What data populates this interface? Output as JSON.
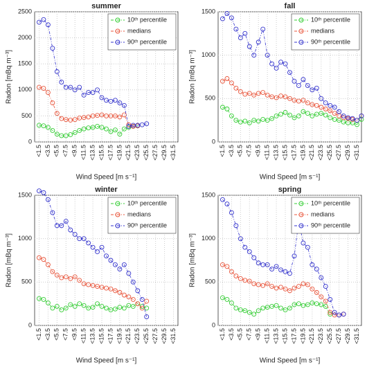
{
  "chart_data": [
    {
      "type": "line",
      "title": "summer",
      "xlabel": "Wind Speed [m s⁻¹]",
      "ylabel": "Radon [mBq m⁻³]",
      "grid": true,
      "legend": "upper right",
      "xlim": [
        0.5,
        32.5
      ],
      "ylim": [
        0,
        2500
      ],
      "yticks": [
        0,
        500,
        1000,
        1500,
        2000,
        2500
      ],
      "xticks": [
        {
          "value": 1.5,
          "label": "<1.5"
        },
        {
          "value": 3.5,
          "label": "<3.5"
        },
        {
          "value": 5.5,
          "label": "<5.5"
        },
        {
          "value": 7.5,
          "label": "<7.5"
        },
        {
          "value": 9.5,
          "label": "<9.5"
        },
        {
          "value": 11.5,
          "label": "<11.5"
        },
        {
          "value": 13.5,
          "label": "<13.5"
        },
        {
          "value": 15.5,
          "label": "<15.5"
        },
        {
          "value": 17.5,
          "label": "<17.5"
        },
        {
          "value": 19.5,
          "label": "<19.5"
        },
        {
          "value": 21.5,
          "label": "<21.5"
        },
        {
          "value": 23.5,
          "label": "<23.5"
        },
        {
          "value": 25.5,
          "label": "<25.5"
        },
        {
          "value": 27.5,
          "label": "<27.5"
        },
        {
          "value": 29.5,
          "label": "<29.5"
        },
        {
          "value": 31.5,
          "label": "<31.5"
        }
      ],
      "series": [
        {
          "name": "10ᵗʰ percentile",
          "color": "#33cc33",
          "x": [
            1.5,
            2.5,
            3.5,
            4.5,
            5.5,
            6.5,
            7.5,
            8.5,
            9.5,
            10.5,
            11.5,
            12.5,
            13.5,
            14.5,
            15.5,
            16.5,
            17.5,
            18.5,
            19.5,
            20.5,
            21.5,
            22.5,
            23.5
          ],
          "values": [
            320,
            310,
            280,
            220,
            150,
            120,
            120,
            140,
            180,
            220,
            250,
            270,
            280,
            300,
            280,
            250,
            200,
            230,
            150,
            250,
            280,
            300,
            310
          ]
        },
        {
          "name": "medians",
          "color": "#e8553b",
          "x": [
            1.5,
            2.5,
            3.5,
            4.5,
            5.5,
            6.5,
            7.5,
            8.5,
            9.5,
            10.5,
            11.5,
            12.5,
            13.5,
            14.5,
            15.5,
            16.5,
            17.5,
            18.5,
            19.5,
            20.5,
            21.5,
            22.5,
            23.5
          ],
          "values": [
            1050,
            1030,
            950,
            750,
            550,
            450,
            430,
            420,
            430,
            460,
            470,
            480,
            500,
            510,
            520,
            500,
            500,
            500,
            480,
            520,
            330,
            300,
            310
          ]
        },
        {
          "name": "90ᵗʰ percentile",
          "color": "#3333cc",
          "x": [
            1.5,
            2.5,
            3.5,
            4.5,
            5.5,
            6.5,
            7.5,
            8.5,
            9.5,
            10.5,
            11.5,
            12.5,
            13.5,
            14.5,
            15.5,
            16.5,
            17.5,
            18.5,
            19.5,
            20.5,
            21.5,
            22.5,
            23.5,
            24.5,
            25.5
          ],
          "values": [
            2300,
            2350,
            2250,
            1800,
            1350,
            1150,
            1050,
            1050,
            1000,
            1050,
            900,
            950,
            950,
            1000,
            850,
            800,
            780,
            800,
            750,
            700,
            300,
            320,
            320,
            330,
            350
          ]
        }
      ]
    },
    {
      "type": "line",
      "title": "fall",
      "xlabel": "Wind Speed [m s⁻¹]",
      "ylabel": "Radon [mBq m⁻³]",
      "grid": true,
      "legend": "upper right",
      "xlim": [
        0.5,
        32.5
      ],
      "ylim": [
        0,
        1500
      ],
      "yticks": [
        0,
        500,
        1000,
        1500
      ],
      "xticks": [
        {
          "value": 1.5,
          "label": "<1.5"
        },
        {
          "value": 3.5,
          "label": "<3.5"
        },
        {
          "value": 5.5,
          "label": "<5.5"
        },
        {
          "value": 7.5,
          "label": "<7.5"
        },
        {
          "value": 9.5,
          "label": "<9.5"
        },
        {
          "value": 11.5,
          "label": "<11.5"
        },
        {
          "value": 13.5,
          "label": "<13.5"
        },
        {
          "value": 15.5,
          "label": "<15.5"
        },
        {
          "value": 17.5,
          "label": "<17.5"
        },
        {
          "value": 19.5,
          "label": "<19.5"
        },
        {
          "value": 21.5,
          "label": "<21.5"
        },
        {
          "value": 23.5,
          "label": "<23.5"
        },
        {
          "value": 25.5,
          "label": "<25.5"
        },
        {
          "value": 27.5,
          "label": "<27.5"
        },
        {
          "value": 29.5,
          "label": "<29.5"
        },
        {
          "value": 31.5,
          "label": "<31.5"
        }
      ],
      "series": [
        {
          "name": "10ᵗʰ percentile",
          "color": "#33cc33",
          "x": [
            1.5,
            2.5,
            3.5,
            4.5,
            5.5,
            6.5,
            7.5,
            8.5,
            9.5,
            10.5,
            11.5,
            12.5,
            13.5,
            14.5,
            15.5,
            16.5,
            17.5,
            18.5,
            19.5,
            20.5,
            21.5,
            22.5,
            23.5,
            24.5,
            25.5,
            26.5,
            27.5,
            28.5,
            29.5,
            30.5,
            31.5,
            32.5
          ],
          "values": [
            400,
            380,
            300,
            250,
            230,
            240,
            220,
            250,
            240,
            260,
            250,
            270,
            300,
            320,
            340,
            310,
            280,
            300,
            350,
            330,
            300,
            320,
            330,
            310,
            280,
            260,
            250,
            230,
            220,
            220,
            200,
            260
          ]
        },
        {
          "name": "medians",
          "color": "#e8553b",
          "x": [
            1.5,
            2.5,
            3.5,
            4.5,
            5.5,
            6.5,
            7.5,
            8.5,
            9.5,
            10.5,
            11.5,
            12.5,
            13.5,
            14.5,
            15.5,
            16.5,
            17.5,
            18.5,
            19.5,
            20.5,
            21.5,
            22.5,
            23.5,
            24.5,
            25.5,
            26.5,
            27.5,
            28.5,
            29.5,
            30.5,
            31.5,
            32.5
          ],
          "values": [
            700,
            730,
            680,
            620,
            580,
            550,
            560,
            540,
            560,
            570,
            540,
            520,
            510,
            530,
            520,
            500,
            480,
            470,
            480,
            450,
            430,
            420,
            400,
            380,
            360,
            330,
            300,
            280,
            270,
            260,
            250,
            300
          ]
        },
        {
          "name": "90ᵗʰ percentile",
          "color": "#3333cc",
          "x": [
            1.5,
            2.5,
            3.5,
            4.5,
            5.5,
            6.5,
            7.5,
            8.5,
            9.5,
            10.5,
            11.5,
            12.5,
            13.5,
            14.5,
            15.5,
            16.5,
            17.5,
            18.5,
            19.5,
            20.5,
            21.5,
            22.5,
            23.5,
            24.5,
            25.5,
            26.5,
            27.5,
            28.5,
            29.5,
            30.5,
            31.5,
            32.5
          ],
          "values": [
            1420,
            1480,
            1430,
            1300,
            1200,
            1250,
            1100,
            1000,
            1150,
            1300,
            1000,
            900,
            850,
            920,
            900,
            800,
            700,
            650,
            720,
            650,
            600,
            620,
            500,
            450,
            420,
            400,
            350,
            300,
            280,
            270,
            250,
            300
          ]
        }
      ]
    },
    {
      "type": "line",
      "title": "winter",
      "xlabel": "Wind Speed [m s⁻¹]",
      "ylabel": "Radon [mBq m⁻³]",
      "grid": true,
      "legend": "upper right",
      "xlim": [
        0.5,
        32.5
      ],
      "ylim": [
        0,
        1500
      ],
      "yticks": [
        0,
        500,
        1000,
        1500
      ],
      "xticks": [
        {
          "value": 1.5,
          "label": "<1.5"
        },
        {
          "value": 3.5,
          "label": "<3.5"
        },
        {
          "value": 5.5,
          "label": "<5.5"
        },
        {
          "value": 7.5,
          "label": "<7.5"
        },
        {
          "value": 9.5,
          "label": "<9.5"
        },
        {
          "value": 11.5,
          "label": "<11.5"
        },
        {
          "value": 13.5,
          "label": "<13.5"
        },
        {
          "value": 15.5,
          "label": "<15.5"
        },
        {
          "value": 17.5,
          "label": "<17.5"
        },
        {
          "value": 19.5,
          "label": "<19.5"
        },
        {
          "value": 21.5,
          "label": "<21.5"
        },
        {
          "value": 23.5,
          "label": "<23.5"
        },
        {
          "value": 25.5,
          "label": "<25.5"
        },
        {
          "value": 27.5,
          "label": "<27.5"
        },
        {
          "value": 29.5,
          "label": "<29.5"
        },
        {
          "value": 31.5,
          "label": "<31.5"
        }
      ],
      "series": [
        {
          "name": "10ᵗʰ percentile",
          "color": "#33cc33",
          "x": [
            1.5,
            2.5,
            3.5,
            4.5,
            5.5,
            6.5,
            7.5,
            8.5,
            9.5,
            10.5,
            11.5,
            12.5,
            13.5,
            14.5,
            15.5,
            16.5,
            17.5,
            18.5,
            19.5,
            20.5,
            21.5,
            22.5,
            23.5,
            24.5,
            25.5
          ],
          "values": [
            310,
            300,
            260,
            200,
            220,
            180,
            200,
            240,
            220,
            250,
            230,
            200,
            210,
            250,
            220,
            200,
            180,
            190,
            210,
            200,
            230,
            220,
            250,
            220,
            200
          ]
        },
        {
          "name": "medians",
          "color": "#e8553b",
          "x": [
            1.5,
            2.5,
            3.5,
            4.5,
            5.5,
            6.5,
            7.5,
            8.5,
            9.5,
            10.5,
            11.5,
            12.5,
            13.5,
            14.5,
            15.5,
            16.5,
            17.5,
            18.5,
            19.5,
            20.5,
            21.5,
            22.5,
            23.5,
            24.5,
            25.5
          ],
          "values": [
            780,
            760,
            700,
            620,
            580,
            550,
            560,
            540,
            560,
            520,
            480,
            470,
            460,
            450,
            440,
            430,
            420,
            400,
            380,
            350,
            330,
            300,
            250,
            200,
            280
          ]
        },
        {
          "name": "90ᵗʰ percentile",
          "color": "#3333cc",
          "x": [
            1.5,
            2.5,
            3.5,
            4.5,
            5.5,
            6.5,
            7.5,
            8.5,
            9.5,
            10.5,
            11.5,
            12.5,
            13.5,
            14.5,
            15.5,
            16.5,
            17.5,
            18.5,
            19.5,
            20.5,
            21.5,
            22.5,
            23.5,
            24.5,
            25.5
          ],
          "values": [
            1550,
            1530,
            1450,
            1300,
            1150,
            1150,
            1200,
            1100,
            1050,
            1000,
            1000,
            950,
            900,
            850,
            900,
            800,
            750,
            700,
            650,
            700,
            600,
            500,
            400,
            300,
            100
          ]
        }
      ]
    },
    {
      "type": "line",
      "title": "spring",
      "xlabel": "Wind Speed [m s⁻¹]",
      "ylabel": "Radon [mBq m⁻³]",
      "grid": true,
      "legend": "upper right",
      "xlim": [
        0.5,
        32.5
      ],
      "ylim": [
        0,
        1500
      ],
      "yticks": [
        0,
        500,
        1000,
        1500
      ],
      "xticks": [
        {
          "value": 1.5,
          "label": "<1.5"
        },
        {
          "value": 3.5,
          "label": "<3.5"
        },
        {
          "value": 5.5,
          "label": "<5.5"
        },
        {
          "value": 7.5,
          "label": "<7.5"
        },
        {
          "value": 9.5,
          "label": "<9.5"
        },
        {
          "value": 11.5,
          "label": "<11.5"
        },
        {
          "value": 13.5,
          "label": "<13.5"
        },
        {
          "value": 15.5,
          "label": "<15.5"
        },
        {
          "value": 17.5,
          "label": "<17.5"
        },
        {
          "value": 19.5,
          "label": "<19.5"
        },
        {
          "value": 21.5,
          "label": "<21.5"
        },
        {
          "value": 23.5,
          "label": "<23.5"
        },
        {
          "value": 25.5,
          "label": "<25.5"
        },
        {
          "value": 27.5,
          "label": "<27.5"
        },
        {
          "value": 29.5,
          "label": "<29.5"
        },
        {
          "value": 31.5,
          "label": "<31.5"
        }
      ],
      "series": [
        {
          "name": "10ᵗʰ percentile",
          "color": "#33cc33",
          "x": [
            1.5,
            2.5,
            3.5,
            4.5,
            5.5,
            6.5,
            7.5,
            8.5,
            9.5,
            10.5,
            11.5,
            12.5,
            13.5,
            14.5,
            15.5,
            16.5,
            17.5,
            18.5,
            19.5,
            20.5,
            21.5,
            22.5,
            23.5,
            24.5,
            25.5
          ],
          "values": [
            320,
            300,
            260,
            200,
            180,
            170,
            150,
            130,
            170,
            200,
            210,
            220,
            230,
            200,
            180,
            200,
            240,
            250,
            230,
            240,
            260,
            250,
            240,
            220,
            130
          ]
        },
        {
          "name": "medians",
          "color": "#e8553b",
          "x": [
            1.5,
            2.5,
            3.5,
            4.5,
            5.5,
            6.5,
            7.5,
            8.5,
            9.5,
            10.5,
            11.5,
            12.5,
            13.5,
            14.5,
            15.5,
            16.5,
            17.5,
            18.5,
            19.5,
            20.5,
            21.5,
            22.5,
            23.5,
            24.5,
            25.5,
            26.5,
            27.5,
            28.5
          ],
          "values": [
            700,
            680,
            620,
            570,
            540,
            520,
            510,
            480,
            470,
            460,
            480,
            450,
            430,
            440,
            420,
            400,
            430,
            450,
            480,
            470,
            420,
            380,
            330,
            280,
            150,
            120,
            120,
            130
          ]
        },
        {
          "name": "90ᵗʰ percentile",
          "color": "#3333cc",
          "x": [
            1.5,
            2.5,
            3.5,
            4.5,
            5.5,
            6.5,
            7.5,
            8.5,
            9.5,
            10.5,
            11.5,
            12.5,
            13.5,
            14.5,
            15.5,
            16.5,
            17.5,
            18.5,
            19.5,
            20.5,
            21.5,
            22.5,
            23.5,
            24.5,
            25.5,
            26.5,
            27.5,
            28.5
          ],
          "values": [
            1450,
            1400,
            1300,
            1150,
            1000,
            900,
            850,
            780,
            720,
            700,
            700,
            650,
            680,
            640,
            620,
            600,
            800,
            1200,
            950,
            900,
            700,
            650,
            550,
            450,
            300,
            150,
            120,
            130
          ]
        }
      ]
    }
  ]
}
